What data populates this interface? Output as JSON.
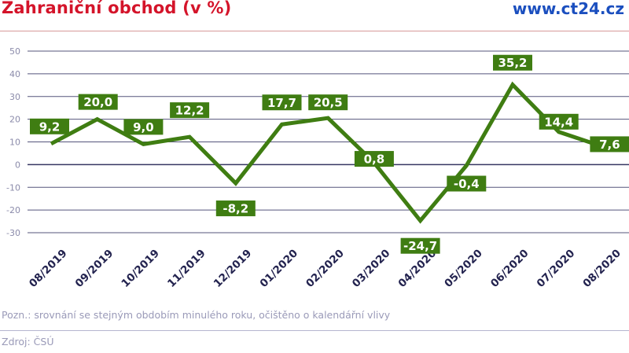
{
  "header": {
    "title": "Zahraniční obchod (v %)",
    "brand": "www.ct24.cz"
  },
  "footer": {
    "note": "Pozn.: srovnání se stejným obdobím minulého roku, očištěno o kalendářní vlivy",
    "source": "Zdroj: ČSÚ"
  },
  "colors": {
    "title": "#d4142a",
    "brand": "#1b4fbf",
    "line": "#3f7d12",
    "label_bg": "#3f7d12",
    "label_text": "#ffffff",
    "grid": "#2b2b5a",
    "tick_text": "#8b8baa",
    "category_text": "#23234f"
  },
  "chart_data": {
    "type": "line",
    "title": "Zahraniční obchod (v %)",
    "xlabel": "",
    "ylabel": "",
    "categories": [
      "08/2019",
      "09/2019",
      "10/2019",
      "11/2019",
      "12/2019",
      "01/2020",
      "02/2020",
      "03/2020",
      "04/2020",
      "05/2020",
      "06/2020",
      "07/2020",
      "08/2020"
    ],
    "series": [
      {
        "name": "Zahraniční obchod",
        "values": [
          9.2,
          20.0,
          9.0,
          12.2,
          -8.2,
          17.7,
          20.5,
          0.8,
          -24.7,
          -0.4,
          35.2,
          14.4,
          7.6
        ],
        "labels": [
          "9,2",
          "20,0",
          "9,0",
          "12,2",
          "-8,2",
          "17,7",
          "20,5",
          "0,8",
          "-24,7",
          "-0,4",
          "35,2",
          "14,4",
          "7,6"
        ]
      }
    ],
    "yticks": [
      50,
      40,
      30,
      20,
      10,
      0,
      -10,
      -20,
      -30
    ],
    "ylim": [
      -30,
      50
    ],
    "grid": true,
    "legend": "none",
    "label_offsets_y": [
      -22,
      -22,
      -22,
      -34,
      32,
      -28,
      -20,
      -5,
      32,
      23,
      -28,
      -13,
      -4
    ],
    "label_offsets_x": [
      -2,
      1,
      0,
      0,
      0,
      0,
      0,
      0,
      0,
      0,
      0,
      0,
      6
    ]
  }
}
